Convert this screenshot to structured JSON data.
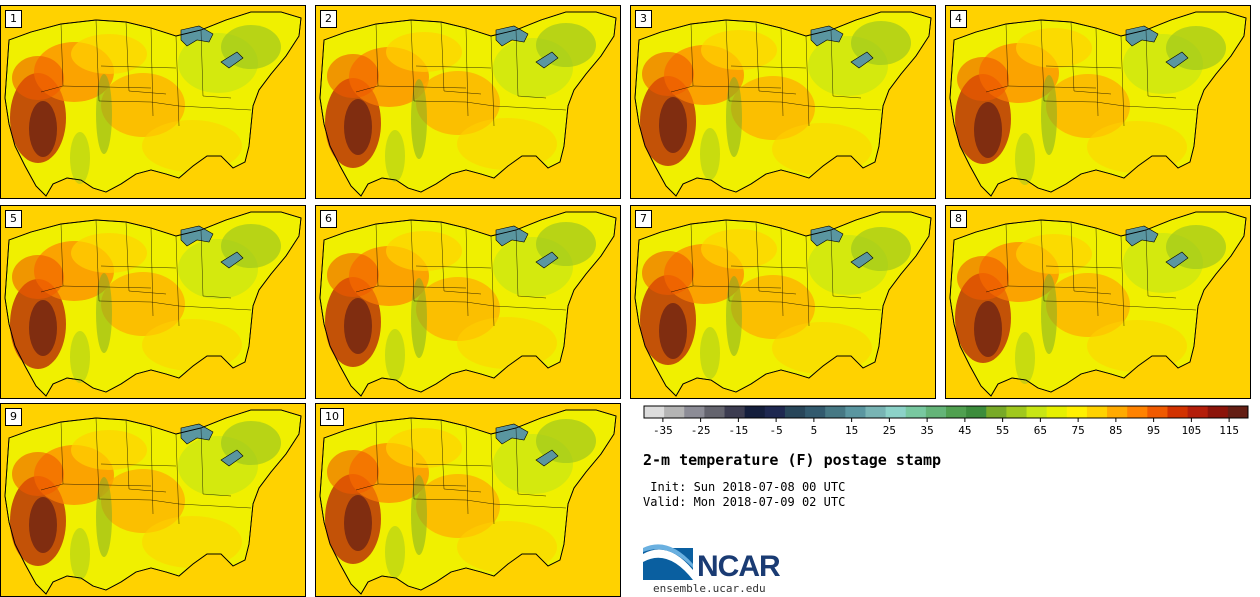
{
  "chart_data": {
    "type": "heatmap",
    "title": "2-m temperature (F) postage stamp",
    "init_label": " Init: Sun 2018-07-08 00 UTC",
    "valid_label": "Valid: Mon 2018-07-09 02 UTC",
    "members": [
      "1",
      "2",
      "3",
      "4",
      "5",
      "6",
      "7",
      "8",
      "9",
      "10"
    ],
    "colorbar": {
      "ticks": [
        "-35",
        "-25",
        "-15",
        "-5",
        "5",
        "15",
        "25",
        "35",
        "45",
        "55",
        "65",
        "75",
        "85",
        "95",
        "105",
        "115"
      ],
      "range": [
        -40,
        120
      ],
      "step": 5,
      "colors": [
        "#dcdcdc",
        "#b4b4b4",
        "#8c8c96",
        "#64646e",
        "#3c3c50",
        "#141e3c",
        "#1e2850",
        "#28465a",
        "#325a6e",
        "#467884",
        "#5a96a0",
        "#78b4b4",
        "#8cd2c8",
        "#78c8a0",
        "#64b478",
        "#50a050",
        "#3c8c3c",
        "#78aa28",
        "#a0c81e",
        "#c8e614",
        "#e6f000",
        "#fff000",
        "#ffd200",
        "#ffaa00",
        "#ff8200",
        "#f05a00",
        "#d23200",
        "#b41e0a",
        "#8c140a",
        "#641e14"
      ]
    }
  },
  "branding": {
    "logo_text": "NCAR",
    "site": "ensemble.ucar.edu"
  },
  "colors": {
    "ocean": "#ffd200",
    "land_base": "#f0f000",
    "border": "#000000"
  }
}
